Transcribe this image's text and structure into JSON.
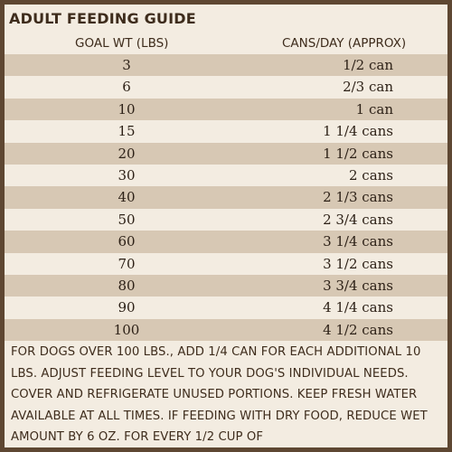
{
  "title": "ADULT FEEDING GUIDE",
  "columns": {
    "goal_wt": "GOAL WT (LBS)",
    "cans_per_day": "CANS/DAY (APPROX)"
  },
  "rows": [
    {
      "wt": "3",
      "cans": "1/2 can"
    },
    {
      "wt": "6",
      "cans": "2/3 can"
    },
    {
      "wt": "10",
      "cans": "1 can"
    },
    {
      "wt": "15",
      "cans": "1 1/4 cans"
    },
    {
      "wt": "20",
      "cans": "1 1/2 cans"
    },
    {
      "wt": "30",
      "cans": "2 cans"
    },
    {
      "wt": "40",
      "cans": "2 1/3 cans"
    },
    {
      "wt": "50",
      "cans": "2 3/4 cans"
    },
    {
      "wt": "60",
      "cans": "3 1/4 cans"
    },
    {
      "wt": "70",
      "cans": "3 1/2 cans"
    },
    {
      "wt": "80",
      "cans": "3 3/4 cans"
    },
    {
      "wt": "90",
      "cans": "4 1/4 cans"
    },
    {
      "wt": "100",
      "cans": "4 1/2 cans"
    }
  ],
  "footnote": "FOR DOGS OVER 100 LBS., ADD 1/4 CAN FOR EACH ADDITIONAL 10 LBS. ADJUST FEEDING LEVEL TO YOUR DOG'S INDIVIDUAL NEEDS. COVER AND REFRIGERATE UNUSED PORTIONS. KEEP FRESH WATER AVAILABLE AT ALL TIMES. IF FEEDING WITH DRY FOOD, REDUCE WET AMOUNT BY 6 OZ. FOR EVERY 1/2 CUP OF",
  "colors": {
    "border": "#5e4732",
    "background": "#f3ece1",
    "stripe": "#d7c8b4",
    "text": "#3e2c1c"
  }
}
